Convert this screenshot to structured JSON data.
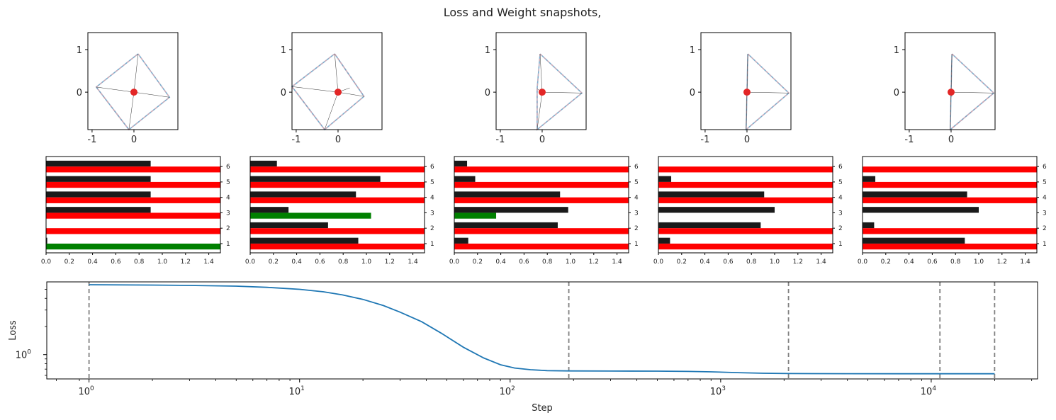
{
  "figure": {
    "title": "Loss and Weight snapshots,"
  },
  "colors": {
    "arrow": "#6aa3c8",
    "diag": "#ffaaaa",
    "point": "#e32626",
    "bar_red": "#ff0000",
    "bar_black": "#1a1a1a",
    "bar_green": "#008000",
    "loss_line": "#1f77b4",
    "vline": "#808080"
  },
  "chart_data": [
    {
      "type": "scatter",
      "subtype": "weight-geometry",
      "snapshots": [
        {
          "arrows": [
            [
              0.1,
              0.9
            ],
            [
              0.85,
              -0.12
            ],
            [
              -0.12,
              -0.88
            ],
            [
              -0.9,
              0.12
            ]
          ],
          "outline": [
            [
              0.1,
              0.9
            ],
            [
              0.85,
              -0.12
            ],
            [
              -0.12,
              -0.88
            ],
            [
              -0.9,
              0.12
            ],
            [
              0.1,
              0.9
            ]
          ],
          "dashed": [
            [
              -0.9,
              0.12
            ],
            [
              -0.12,
              -0.88
            ]
          ],
          "center": [
            0,
            0
          ]
        },
        {
          "arrows": [
            [
              -0.08,
              0.9
            ],
            [
              0.62,
              -0.1
            ],
            [
              -0.32,
              -0.88
            ],
            [
              -1.1,
              0.13
            ],
            [
              0.28,
              0.1
            ]
          ],
          "outline": [
            [
              -0.08,
              0.9
            ],
            [
              0.62,
              -0.1
            ],
            [
              -0.32,
              -0.88
            ],
            [
              -1.1,
              0.13
            ],
            [
              -0.08,
              0.9
            ]
          ],
          "dashed": [
            [
              -0.08,
              0.9
            ],
            [
              0.62,
              -0.1
            ]
          ],
          "dashed2": [
            [
              -1.1,
              0.13
            ],
            [
              -0.32,
              -0.88
            ]
          ],
          "center": [
            0,
            0
          ]
        },
        {
          "arrows": [
            [
              -0.05,
              0.9
            ],
            [
              0.95,
              -0.02
            ],
            [
              -0.12,
              -0.88
            ],
            [
              -0.12,
              0.08
            ]
          ],
          "outline": [
            [
              -0.05,
              0.9
            ],
            [
              0.95,
              -0.02
            ],
            [
              -0.12,
              -0.88
            ],
            [
              -0.12,
              0.08
            ],
            [
              -0.05,
              0.9
            ]
          ],
          "dashed": [
            [
              -0.12,
              0.08
            ],
            [
              -0.12,
              -0.88
            ]
          ],
          "center": [
            0,
            0
          ]
        },
        {
          "arrows": [
            [
              0.02,
              0.9
            ],
            [
              1.0,
              -0.02
            ],
            [
              -0.02,
              -0.88
            ],
            [
              -0.02,
              0.02
            ]
          ],
          "outline": [
            [
              0.02,
              0.9
            ],
            [
              1.0,
              -0.02
            ],
            [
              -0.02,
              -0.88
            ],
            [
              0.02,
              0.9
            ]
          ],
          "dashed": [],
          "center": [
            0,
            0
          ]
        },
        {
          "arrows": [
            [
              0.02,
              0.9
            ],
            [
              1.02,
              -0.02
            ],
            [
              -0.02,
              -0.88
            ],
            [
              0.02,
              -0.1
            ]
          ],
          "outline": [
            [
              0.02,
              0.9
            ],
            [
              1.02,
              -0.02
            ],
            [
              -0.02,
              -0.88
            ],
            [
              0.02,
              0.9
            ]
          ],
          "dashed": [
            [
              1.02,
              -0.02
            ],
            [
              0.02,
              -0.85
            ]
          ],
          "center": [
            0,
            0
          ]
        }
      ],
      "xlim": [
        -1.1,
        1.05
      ],
      "ylim": [
        -0.88,
        1.4
      ],
      "xticks": [
        "-1",
        "0"
      ],
      "xtick_values": [
        -1,
        0
      ],
      "yticks": [
        "1",
        "0"
      ],
      "ytick_values": [
        1,
        0
      ]
    },
    {
      "type": "bar",
      "orientation": "horizontal",
      "categories": [
        "1",
        "2",
        "3",
        "4",
        "5",
        "6"
      ],
      "xlim": [
        0,
        1.5
      ],
      "xticks": [
        "0.0",
        "0.2",
        "0.4",
        "0.6",
        "0.8",
        "1.0",
        "1.2",
        "1.4"
      ],
      "xtick_values": [
        0,
        0.2,
        0.4,
        0.6,
        0.8,
        1.0,
        1.2,
        1.4
      ],
      "panels": [
        {
          "black": [
            0.01,
            0,
            0.9,
            0.9,
            0.9,
            0.9
          ],
          "red": [
            0,
            1.5,
            1.5,
            1.5,
            1.5,
            1.5
          ],
          "green": [
            1.5,
            0,
            0,
            0,
            0,
            0
          ]
        },
        {
          "black": [
            0.93,
            0.67,
            0.33,
            0.91,
            1.12,
            0.23
          ],
          "red": [
            1.5,
            1.5,
            0,
            1.5,
            1.5,
            1.5
          ],
          "green": [
            0,
            0,
            1.04,
            0,
            0,
            0
          ]
        },
        {
          "black": [
            0.12,
            0.89,
            0.98,
            0.91,
            0.18,
            0.11
          ],
          "red": [
            1.5,
            1.5,
            0,
            1.5,
            1.5,
            1.5
          ],
          "green": [
            0,
            0,
            0.36,
            0,
            0,
            0
          ]
        },
        {
          "black": [
            0.1,
            0.88,
            1.0,
            0.91,
            0.11,
            0
          ],
          "red": [
            1.5,
            1.5,
            0,
            1.5,
            1.5,
            1.5
          ],
          "green": [
            0,
            0,
            0,
            0,
            0,
            0
          ]
        },
        {
          "black": [
            0.88,
            0.1,
            1.0,
            0.9,
            0.11,
            0
          ],
          "red": [
            1.5,
            1.5,
            0,
            1.5,
            1.5,
            1.5
          ],
          "green": [
            0,
            0,
            0,
            0,
            0,
            0
          ]
        }
      ]
    },
    {
      "type": "line",
      "xscale": "log",
      "yscale": "log",
      "xlabel": "Step",
      "ylabel": "Loss",
      "xlim": [
        0.63,
        32000
      ],
      "ylim": [
        0.55,
        6.0
      ],
      "xticks": [
        {
          "value": 1,
          "base": "10",
          "exp": "0"
        },
        {
          "value": 10,
          "base": "10",
          "exp": "1"
        },
        {
          "value": 100,
          "base": "10",
          "exp": "2"
        },
        {
          "value": 1000,
          "base": "10",
          "exp": "3"
        },
        {
          "value": 10000,
          "base": "10",
          "exp": "4"
        }
      ],
      "yticks": [
        {
          "value": 1,
          "base": "10",
          "exp": "0"
        }
      ],
      "snapshot_steps": [
        1,
        190,
        2100,
        11000,
        20000
      ],
      "x": [
        1,
        2,
        3,
        5,
        7,
        10,
        13,
        16,
        20,
        25,
        30,
        38,
        47,
        60,
        75,
        90,
        105,
        125,
        150,
        190,
        300,
        500,
        700,
        900,
        1200,
        1600,
        2100,
        4000,
        8000,
        12000,
        20000
      ],
      "y": [
        5.6,
        5.55,
        5.5,
        5.4,
        5.25,
        5.0,
        4.7,
        4.35,
        3.9,
        3.35,
        2.85,
        2.25,
        1.7,
        1.2,
        0.92,
        0.78,
        0.72,
        0.69,
        0.675,
        0.67,
        0.668,
        0.666,
        0.662,
        0.655,
        0.642,
        0.632,
        0.628,
        0.626,
        0.625,
        0.625,
        0.625
      ]
    }
  ]
}
